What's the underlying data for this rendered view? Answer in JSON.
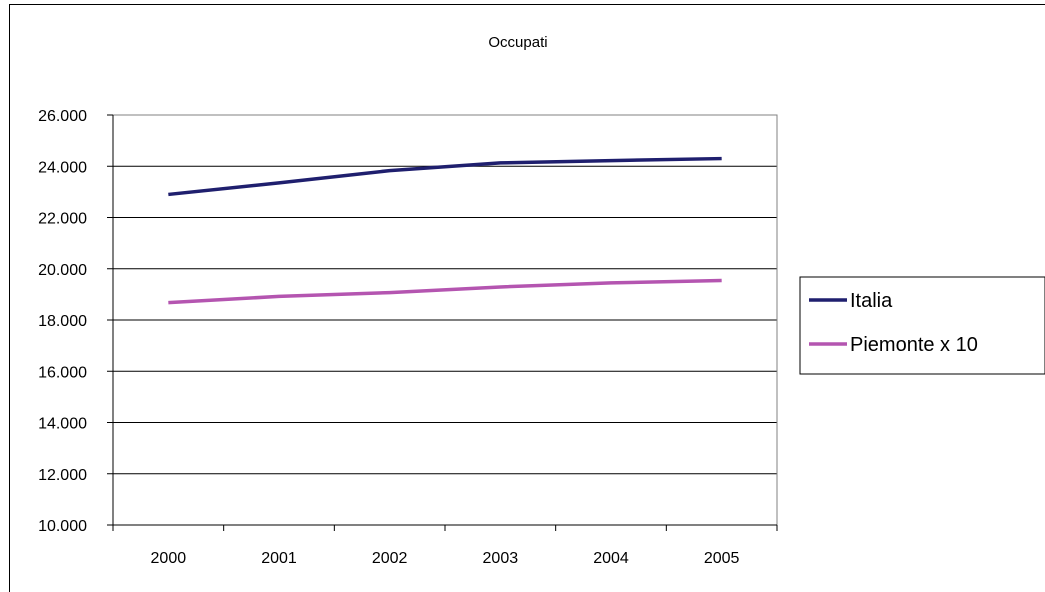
{
  "chart_data": {
    "type": "line",
    "title": "Occupati",
    "xlabel": "",
    "ylabel": "",
    "categories": [
      "2000",
      "2001",
      "2002",
      "2003",
      "2004",
      "2005"
    ],
    "ylim": [
      10000,
      26000
    ],
    "yticks": [
      10000,
      12000,
      14000,
      16000,
      18000,
      20000,
      22000,
      24000,
      26000
    ],
    "ytick_labels": [
      "10.000",
      "12.000",
      "14.000",
      "16.000",
      "18.000",
      "20.000",
      "22.000",
      "24.000",
      "26.000"
    ],
    "grid": true,
    "legend_position": "right",
    "series": [
      {
        "name": "Italia",
        "color": "#1f1f6e",
        "values": [
          22900,
          23350,
          23830,
          24130,
          24220,
          24300
        ]
      },
      {
        "name": "Piemonte x 10",
        "color": "#b455b0",
        "values": [
          18680,
          18920,
          19070,
          19290,
          19450,
          19540
        ]
      }
    ]
  }
}
